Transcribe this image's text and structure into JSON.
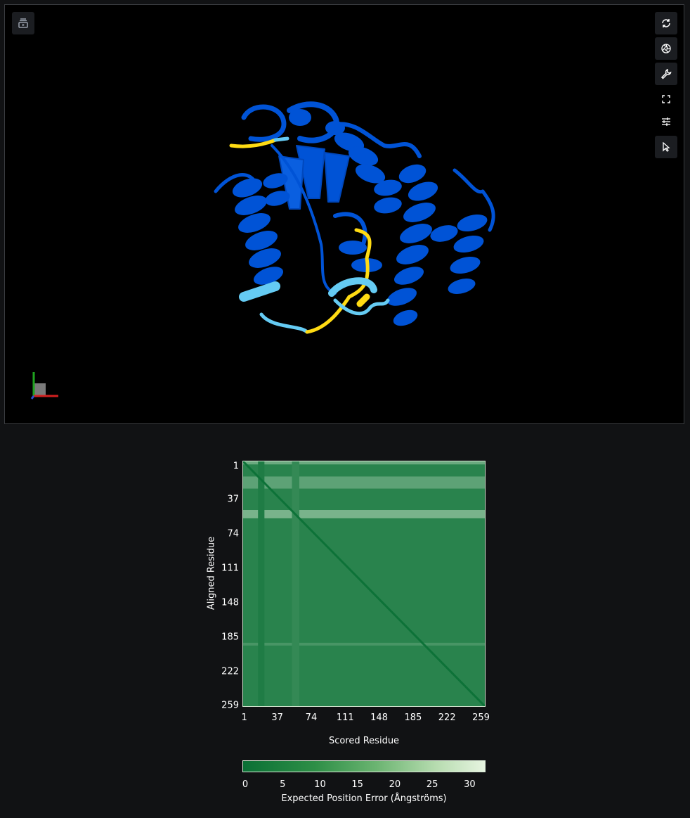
{
  "viewer": {
    "toolbar": {
      "animation_icon": "animation-play-icon",
      "tools": [
        {
          "name": "reset-camera-button",
          "icon": "refresh-icon"
        },
        {
          "name": "screenshot-button",
          "icon": "camera-shutter-icon"
        },
        {
          "name": "controls-button",
          "icon": "wrench-icon"
        },
        {
          "name": "fullscreen-button",
          "icon": "expand-icon"
        },
        {
          "name": "settings-button",
          "icon": "sliders-icon"
        },
        {
          "name": "select-mode-button",
          "icon": "cursor-icon"
        }
      ]
    },
    "structure_colors": {
      "very_high": "#0053d6",
      "confident": "#65cbf3",
      "low": "#ffdb13"
    }
  },
  "pae": {
    "xlabel": "Scored Residue",
    "ylabel": "Aligned Residue",
    "colorbar_label": "Expected Position Error (Ångströms)"
  },
  "chart_data": {
    "type": "heatmap",
    "x_ticks": [
      "1",
      "37",
      "74",
      "111",
      "148",
      "185",
      "222",
      "259"
    ],
    "y_ticks": [
      "1",
      "37",
      "74",
      "111",
      "148",
      "185",
      "222",
      "259"
    ],
    "residue_range": [
      1,
      265
    ],
    "colorbar_ticks": [
      "0",
      "5",
      "10",
      "15",
      "20",
      "25",
      "30"
    ],
    "colorbar_range": [
      0,
      31.75
    ],
    "colors": {
      "low": "#0a7035",
      "high": "#e6f4e0"
    },
    "bands": [
      {
        "axis": "row",
        "from": 1,
        "to": 4,
        "error": 14
      },
      {
        "axis": "row",
        "from": 18,
        "to": 30,
        "error": 12
      },
      {
        "axis": "row",
        "from": 54,
        "to": 62,
        "error": 16
      },
      {
        "axis": "row",
        "from": 197,
        "to": 199,
        "error": 9
      },
      {
        "axis": "col",
        "from": 55,
        "to": 62,
        "error": 6
      },
      {
        "axis": "col",
        "from": 18,
        "to": 24,
        "error": 3
      }
    ],
    "diagonal_error": 0.5,
    "background_error": 4.5
  }
}
